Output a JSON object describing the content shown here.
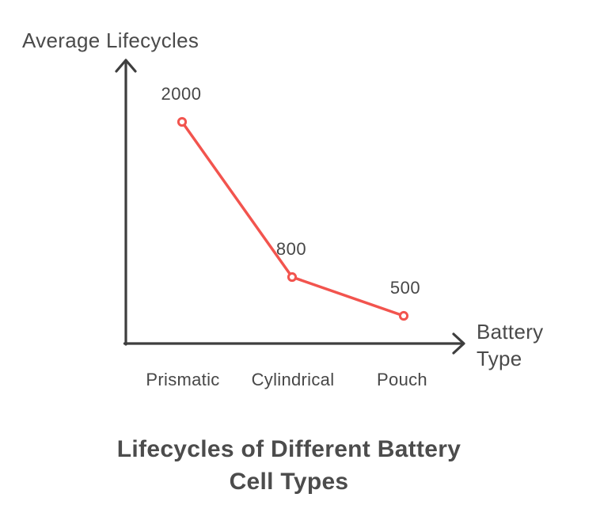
{
  "chart_data": {
    "type": "line",
    "categories": [
      "Prismatic",
      "Cylindrical",
      "Pouch"
    ],
    "values": [
      2000,
      800,
      500
    ],
    "title": "Lifecycles of Different Battery Cell Types",
    "title_lines": [
      "Lifecycles of Different Battery",
      "Cell Types"
    ],
    "xlabel": "Battery Type",
    "ylabel": "Average Lifecycles",
    "ylim": [
      0,
      2000
    ],
    "grid": false,
    "legend": false,
    "marker_style": "open-circle",
    "series_color": "#f2544e",
    "axis_color": "#3e3e3e",
    "text_color": "#474747"
  }
}
